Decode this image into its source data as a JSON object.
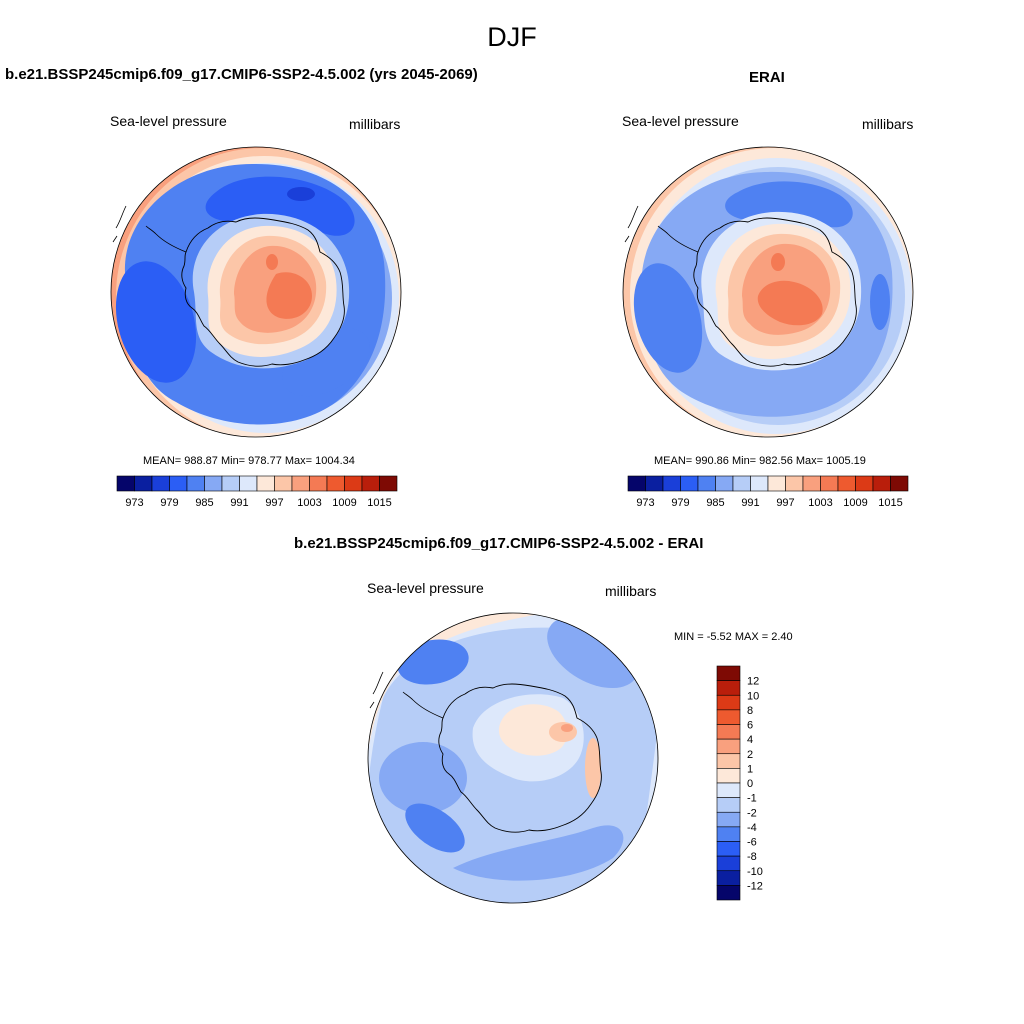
{
  "title": "DJF",
  "colors": {
    "abs_palette": [
      "#05056a",
      "#0a1fa0",
      "#1a3fd9",
      "#2b5ef5",
      "#4f81f2",
      "#86a9f4",
      "#b6cdf7",
      "#dde8fb",
      "#fde8d9",
      "#fcc6a8",
      "#f9a07e",
      "#f47a54",
      "#ee5a2f",
      "#dc3a16",
      "#b91e0b",
      "#7e0a04"
    ],
    "diff_palette": [
      "#05056a",
      "#0a1fa0",
      "#1a3fd9",
      "#2b5ef5",
      "#4f81f2",
      "#86a9f4",
      "#b6cdf7",
      "#dde8fb",
      "#fde8d9",
      "#fcc6a8",
      "#f9a07e",
      "#f47a54",
      "#ee5a2f",
      "#dc3a16",
      "#b91e0b",
      "#7e0a04"
    ],
    "coastline": "#000000"
  },
  "chart_data": [
    {
      "type": "heatmap",
      "panel": "model",
      "title": "b.e21.BSSP245cmip6.f09_g17.CMIP6-SSP2-4.5.002 (yrs 2045-2069)",
      "left_label": "Sea-level pressure",
      "right_label": "millibars",
      "stats": "MEAN= 988.87  Min= 978.77  Max= 1004.34",
      "mean": 988.87,
      "min": 978.77,
      "max": 1004.34,
      "colorbar": {
        "orientation": "horizontal",
        "levels": [
          973,
          976,
          979,
          982,
          985,
          988,
          991,
          994,
          997,
          1000,
          1003,
          1006,
          1009,
          1012,
          1015
        ],
        "tick_labels": [
          "973",
          "979",
          "985",
          "991",
          "997",
          "1003",
          "1009",
          "1015"
        ]
      }
    },
    {
      "type": "heatmap",
      "panel": "obs",
      "title": "ERAI",
      "left_label": "Sea-level pressure",
      "right_label": "millibars",
      "stats": "MEAN= 990.86  Min= 982.56  Max= 1005.19",
      "mean": 990.86,
      "min": 982.56,
      "max": 1005.19,
      "colorbar": {
        "orientation": "horizontal",
        "levels": [
          973,
          976,
          979,
          982,
          985,
          988,
          991,
          994,
          997,
          1000,
          1003,
          1006,
          1009,
          1012,
          1015
        ],
        "tick_labels": [
          "973",
          "979",
          "985",
          "991",
          "997",
          "1003",
          "1009",
          "1015"
        ]
      }
    },
    {
      "type": "heatmap",
      "panel": "difference",
      "title": "b.e21.BSSP245cmip6.f09_g17.CMIP6-SSP2-4.5.002 - ERAI",
      "left_label": "Sea-level pressure",
      "right_label": "millibars",
      "stats": "MIN =  -5.52 MAX =   2.40",
      "min": -5.52,
      "max": 2.4,
      "colorbar": {
        "orientation": "vertical",
        "levels": [
          -12,
          -10,
          -8,
          -6,
          -4,
          -2,
          -1,
          0,
          1,
          2,
          4,
          6,
          8,
          10,
          12
        ],
        "tick_labels": [
          "12",
          "10",
          "8",
          "6",
          "4",
          "2",
          "1",
          "0",
          "-1",
          "-2",
          "-4",
          "-6",
          "-8",
          "-10",
          "-12"
        ]
      }
    }
  ]
}
